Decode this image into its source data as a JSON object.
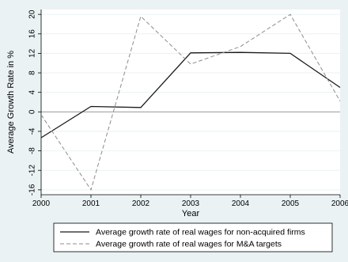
{
  "chart_data": {
    "type": "line",
    "title": "",
    "xlabel": "Year",
    "ylabel": "Average Growth Rate in %",
    "x": [
      2000,
      2001,
      2002,
      2003,
      2004,
      2005,
      2006
    ],
    "xlim": [
      2000,
      2006
    ],
    "ylim": [
      -17,
      21
    ],
    "yticks": [
      -16,
      -12,
      -8,
      -4,
      0,
      4,
      8,
      12,
      16,
      20
    ],
    "x_tick_labels": [
      "2000",
      "2001",
      "2002",
      "2003",
      "2004",
      "2005",
      "2006"
    ],
    "y_tick_labels": [
      "-16",
      "-12",
      "-8",
      "-4",
      "0",
      "4",
      "8",
      "12",
      "16",
      "20"
    ],
    "grid": "horizontal",
    "legend_position": "bottom",
    "series": [
      {
        "name": "Average growth rate of real wages for non-acquired firms",
        "values": [
          -5.3,
          1.1,
          0.9,
          12.1,
          12.2,
          12.0,
          5.0
        ],
        "style": "solid",
        "color": "#1a1a1a"
      },
      {
        "name": "Average growth rate of real wages for M&A targets",
        "values": [
          -0.6,
          -16.0,
          19.6,
          9.8,
          13.4,
          20.0,
          2.2
        ],
        "style": "dashed",
        "color": "#8c8c8c"
      }
    ],
    "colors": {
      "background": "#eaf2f3",
      "plot_area": "#ffffff",
      "grid": "#eaf2f3",
      "zero_line": "#8c8c8c"
    }
  }
}
